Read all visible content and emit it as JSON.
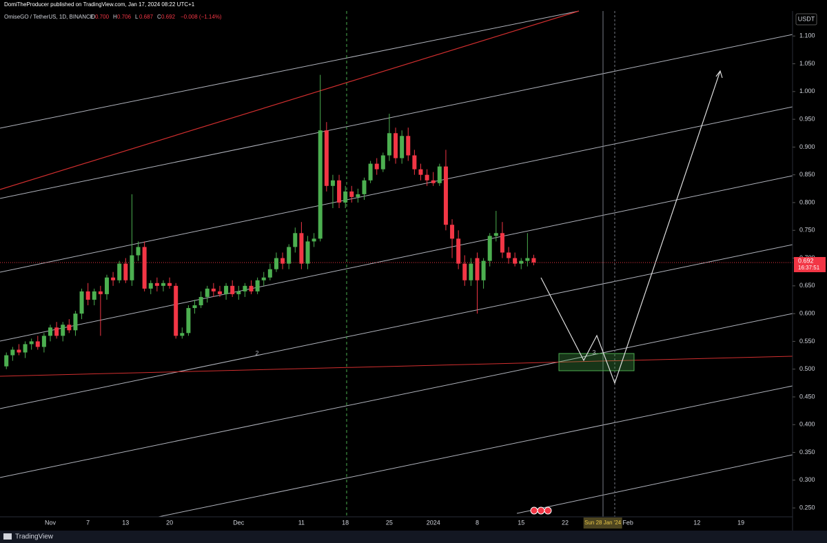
{
  "header": "DomiTheProducer published on TradingView.com, Jan 17, 2024 08:22 UTC+1",
  "footer": "TradingView",
  "chart_data": {
    "type": "candlestick",
    "title": "OmiseGO / TetherUS, 1D, BINANCE",
    "legend_values": [
      {
        "label": "O",
        "value": "0.700"
      },
      {
        "label": "H",
        "value": "0.706"
      },
      {
        "label": "L",
        "value": "0.687"
      },
      {
        "label": "C",
        "value": "0.692"
      }
    ],
    "change": "−0.008 (−1.14%)",
    "currency": "USDT",
    "last_price_label": "0.692",
    "countdown": "16:37:51",
    "up_color": "#4caf50",
    "down_color": "#f23645",
    "annotations": [
      "2",
      "3"
    ],
    "categories": [
      null,
      null,
      null,
      null,
      null,
      null,
      null,
      "Nov",
      null,
      null,
      null,
      null,
      null,
      "7",
      null,
      null,
      null,
      null,
      null,
      "13",
      null,
      null,
      null,
      null,
      null,
      null,
      "20",
      null,
      null,
      null,
      null,
      null,
      null,
      null,
      null,
      null,
      null,
      "Dec",
      null,
      null,
      null,
      null,
      null,
      null,
      null,
      null,
      null,
      "11",
      null,
      null,
      null,
      null,
      null,
      null,
      "18",
      null,
      null,
      null,
      null,
      null,
      null,
      "25",
      null,
      null,
      null,
      null,
      null,
      null,
      "2024",
      null,
      null,
      null,
      null,
      null,
      null,
      "8",
      null,
      null,
      null,
      null,
      null,
      null,
      "15",
      null,
      null,
      null,
      null,
      null,
      null,
      "22",
      null,
      null,
      null,
      null,
      null,
      "Sun 28 Jan '24",
      null,
      null,
      null,
      "Feb",
      null,
      null,
      null,
      null,
      null,
      null,
      null,
      null,
      null,
      null,
      "12",
      null,
      null,
      null,
      null,
      null,
      null,
      "19",
      null,
      null
    ],
    "highlight_category": 95,
    "open": [
      0.505,
      0.525,
      0.535,
      0.53,
      0.545,
      0.55,
      0.54,
      0.56,
      0.575,
      0.56,
      0.58,
      0.57,
      0.6,
      0.64,
      0.625,
      0.64,
      0.635,
      0.665,
      0.66,
      0.69,
      0.66,
      0.705,
      0.72,
      0.645,
      0.655,
      0.65,
      0.655,
      0.65,
      0.56,
      0.565,
      0.61,
      0.615,
      0.63,
      0.645,
      0.64,
      0.635,
      0.65,
      0.635,
      0.64,
      0.65,
      0.64,
      0.66,
      0.665,
      0.68,
      0.7,
      0.69,
      0.72,
      0.745,
      0.69,
      0.73,
      0.735,
      0.93,
      0.83,
      0.84,
      0.8,
      0.82,
      0.81,
      0.815,
      0.84,
      0.87,
      0.86,
      0.885,
      0.925,
      0.88,
      0.92,
      0.885,
      0.86,
      0.85,
      0.84,
      0.835,
      0.865,
      0.76,
      0.735,
      0.69,
      0.66,
      0.7,
      0.66,
      0.695,
      0.74,
      0.745,
      0.71,
      0.7,
      0.69,
      0.695,
      0.7,
      null,
      null,
      null,
      null,
      null,
      null,
      null,
      null,
      null,
      null,
      null,
      null,
      null,
      null,
      null,
      null,
      null,
      null,
      null,
      null,
      null,
      null,
      null,
      null,
      null,
      null,
      null,
      null,
      null,
      null,
      null,
      null,
      null,
      null,
      null
    ],
    "high": [
      0.53,
      0.54,
      0.545,
      0.55,
      0.555,
      0.56,
      0.565,
      0.58,
      0.585,
      0.585,
      0.59,
      0.605,
      0.645,
      0.655,
      0.645,
      0.65,
      0.67,
      0.675,
      0.695,
      0.7,
      0.815,
      0.73,
      0.73,
      0.66,
      0.665,
      0.66,
      0.665,
      0.655,
      0.575,
      0.615,
      0.625,
      0.64,
      0.65,
      0.655,
      0.65,
      0.655,
      0.66,
      0.65,
      0.655,
      0.66,
      0.665,
      0.675,
      0.69,
      0.71,
      0.71,
      0.725,
      0.755,
      0.765,
      0.74,
      0.745,
      1.03,
      0.945,
      0.85,
      0.85,
      0.83,
      0.83,
      0.825,
      0.845,
      0.875,
      0.88,
      0.89,
      0.96,
      0.935,
      0.93,
      0.935,
      0.895,
      0.87,
      0.86,
      0.855,
      0.87,
      0.895,
      0.77,
      0.75,
      0.705,
      0.7,
      0.71,
      0.7,
      0.745,
      0.785,
      0.765,
      0.72,
      0.71,
      0.7,
      0.745,
      0.706,
      null,
      null,
      null,
      null,
      null,
      null,
      null,
      null,
      null,
      null,
      null,
      null,
      null,
      null,
      null,
      null,
      null,
      null,
      null,
      null,
      null,
      null,
      null,
      null,
      null,
      null,
      null,
      null,
      null,
      null,
      null,
      null,
      null,
      null,
      null
    ],
    "low": [
      0.5,
      0.515,
      0.525,
      0.52,
      0.535,
      0.535,
      0.53,
      0.55,
      0.555,
      0.55,
      0.565,
      0.56,
      0.59,
      0.615,
      0.615,
      0.56,
      0.625,
      0.65,
      0.655,
      0.655,
      0.65,
      0.695,
      0.64,
      0.635,
      0.64,
      0.64,
      0.645,
      0.555,
      0.555,
      0.56,
      0.6,
      0.61,
      0.62,
      0.63,
      0.63,
      0.625,
      0.63,
      0.625,
      0.63,
      0.635,
      0.635,
      0.65,
      0.66,
      0.675,
      0.68,
      0.68,
      0.71,
      0.68,
      0.68,
      0.72,
      0.73,
      0.82,
      0.79,
      0.79,
      0.79,
      0.8,
      0.8,
      0.805,
      0.835,
      0.85,
      0.855,
      0.875,
      0.87,
      0.87,
      0.875,
      0.85,
      0.84,
      0.83,
      0.83,
      0.83,
      0.75,
      0.7,
      0.68,
      0.65,
      0.65,
      0.6,
      0.645,
      0.685,
      0.73,
      0.7,
      0.69,
      0.685,
      0.68,
      0.685,
      0.687,
      null,
      null,
      null,
      null,
      null,
      null,
      null,
      null,
      null,
      null,
      null,
      null,
      null,
      null,
      null,
      null,
      null,
      null,
      null,
      null,
      null,
      null,
      null,
      null,
      null,
      null,
      null,
      null,
      null,
      null,
      null,
      null,
      null,
      null,
      null
    ],
    "close": [
      0.525,
      0.535,
      0.53,
      0.545,
      0.55,
      0.54,
      0.56,
      0.575,
      0.56,
      0.58,
      0.57,
      0.6,
      0.64,
      0.625,
      0.64,
      0.635,
      0.665,
      0.66,
      0.69,
      0.66,
      0.705,
      0.72,
      0.645,
      0.655,
      0.65,
      0.655,
      0.65,
      0.56,
      0.565,
      0.61,
      0.615,
      0.63,
      0.645,
      0.64,
      0.635,
      0.65,
      0.635,
      0.64,
      0.65,
      0.64,
      0.66,
      0.665,
      0.68,
      0.7,
      0.69,
      0.72,
      0.745,
      0.69,
      0.73,
      0.735,
      0.93,
      0.83,
      0.84,
      0.8,
      0.82,
      0.81,
      0.815,
      0.84,
      0.87,
      0.86,
      0.885,
      0.925,
      0.88,
      0.92,
      0.885,
      0.86,
      0.85,
      0.84,
      0.835,
      0.865,
      0.76,
      0.735,
      0.69,
      0.66,
      0.69,
      0.66,
      0.695,
      0.74,
      0.745,
      0.71,
      0.7,
      0.69,
      0.695,
      0.7,
      0.692,
      null,
      null,
      null,
      null,
      null,
      null,
      null,
      null,
      null,
      null,
      null,
      null,
      null,
      null,
      null,
      null,
      null,
      null,
      null,
      null,
      null,
      null,
      null,
      null,
      null,
      null,
      null,
      null,
      null,
      null,
      null,
      null,
      null,
      null,
      null
    ],
    "last_price": 0.692,
    "ylim": [
      0.234,
      1.145
    ],
    "yticks": [
      {
        "value": 0.25,
        "label": "0.250"
      },
      {
        "value": 0.3,
        "label": "0.300"
      },
      {
        "value": 0.35,
        "label": "0.350"
      },
      {
        "value": 0.4,
        "label": "0.400"
      },
      {
        "value": 0.45,
        "label": "0.450"
      },
      {
        "value": 0.5,
        "label": "0.500"
      },
      {
        "value": 0.55,
        "label": "0.550"
      },
      {
        "value": 0.6,
        "label": "0.600"
      },
      {
        "value": 0.65,
        "label": "0.650"
      },
      {
        "value": 0.7,
        "label": "0.700"
      },
      {
        "value": 0.75,
        "label": "0.750"
      },
      {
        "value": 0.8,
        "label": "0.800"
      },
      {
        "value": 0.85,
        "label": "0.850"
      },
      {
        "value": 0.9,
        "label": "0.900"
      },
      {
        "value": 0.95,
        "label": "0.950"
      },
      {
        "value": 1.0,
        "label": "1.000"
      },
      {
        "value": 1.05,
        "label": "1.050"
      },
      {
        "value": 1.1,
        "label": "1.100"
      }
    ]
  }
}
